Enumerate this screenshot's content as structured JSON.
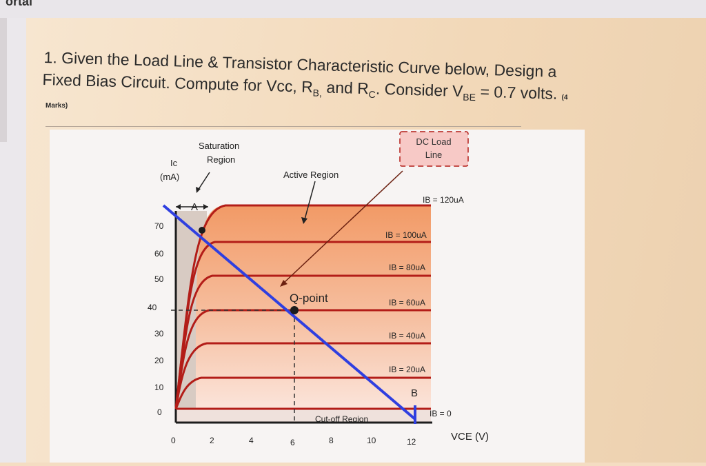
{
  "browser": {
    "top_text": "ortal"
  },
  "question": {
    "line1": "1. Given the Load Line & Transistor Characteristic Curve below, Design a",
    "line2_part1": "Fixed Bias Circuit. Compute for Vcc, R",
    "rb_sub": "B,",
    "line2_part2": " and R",
    "rc_sub": "C",
    "line2_part3": ". Consider V",
    "vbe_sub": "BE",
    "line2_part4": " = 0.7 volts.",
    "marks_open": "(4",
    "marks_word": "Marks)"
  },
  "figure": {
    "y_axis_label_line1": "Ic",
    "y_axis_label_line2": "(mA)",
    "x_axis_label": "VCE (V)",
    "y_ticks": [
      "70",
      "60",
      "50",
      "40",
      "30",
      "20",
      "10",
      "0"
    ],
    "x_ticks": [
      "0",
      "2",
      "4",
      "6",
      "8",
      "10",
      "12"
    ],
    "saturation_label_line1": "Saturation",
    "saturation_label_line2": "Region",
    "active_label": "Active Region",
    "dc_load_line_label_line1": "DC Load",
    "dc_load_line_label_line2": "Line",
    "qpoint_label": "Q-point",
    "cutoff_label": "Cut-off Region",
    "point_a_label": "A",
    "point_b_label": "B",
    "curve_labels": [
      "IB = 120uA",
      "IB = 100uA",
      "IB = 80uA",
      "IB = 60uA",
      "IB = 40uA",
      "IB = 20uA",
      "IB = 0"
    ],
    "colors": {
      "load_line": "#2f3fe0",
      "curves": "#b31d18",
      "saturation_fill": "#d8cbc3",
      "active_fill_top": "#f29a66",
      "active_fill_bottom": "#fbe4da",
      "dc_box_fill": "#f7c9c6"
    }
  }
}
